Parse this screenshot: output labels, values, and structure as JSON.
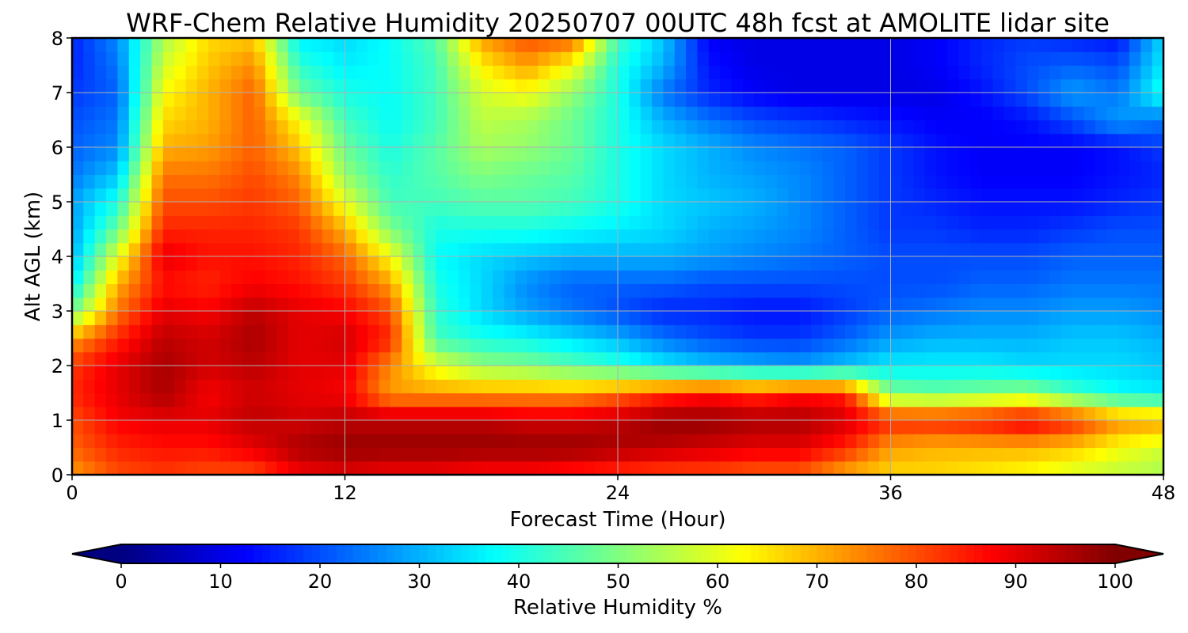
{
  "chart_data": {
    "type": "heatmap",
    "title": "WRF-Chem Relative Humidity 20250707 00UTC 48h fcst at AMOLITE lidar site",
    "xlabel": "Forecast Time (Hour)",
    "ylabel": "Alt AGL (km)",
    "xlim": [
      0,
      48
    ],
    "ylim": [
      0,
      8
    ],
    "xticks": [
      0,
      12,
      24,
      36,
      48
    ],
    "yticks": [
      0,
      1,
      2,
      3,
      4,
      5,
      6,
      7,
      8
    ],
    "grid": true,
    "colormap": "jet",
    "x": [
      0,
      2,
      4,
      6,
      8,
      10,
      12,
      14,
      16,
      18,
      20,
      22,
      24,
      26,
      28,
      30,
      32,
      34,
      36,
      38,
      40,
      42,
      44,
      46,
      48
    ],
    "y": [
      0,
      0.5,
      1,
      1.5,
      2,
      2.5,
      3,
      3.5,
      4,
      4.5,
      5,
      5.5,
      6,
      6.5,
      7,
      7.5,
      8
    ],
    "z": [
      [
        72,
        80,
        82,
        80,
        80,
        88,
        90,
        88,
        88,
        86,
        86,
        84,
        82,
        80,
        80,
        78,
        78,
        70,
        66,
        66,
        64,
        62,
        58,
        56,
        54
      ],
      [
        78,
        84,
        86,
        86,
        90,
        96,
        98,
        98,
        98,
        98,
        98,
        98,
        96,
        94,
        92,
        90,
        90,
        84,
        72,
        70,
        70,
        70,
        68,
        62,
        58
      ],
      [
        80,
        88,
        90,
        90,
        94,
        92,
        94,
        94,
        94,
        94,
        92,
        92,
        94,
        98,
        98,
        96,
        96,
        92,
        84,
        84,
        86,
        90,
        84,
        74,
        72
      ],
      [
        84,
        90,
        96,
        88,
        92,
        90,
        88,
        72,
        72,
        72,
        72,
        72,
        76,
        82,
        86,
        82,
        86,
        84,
        50,
        48,
        50,
        52,
        44,
        38,
        36
      ],
      [
        82,
        90,
        96,
        92,
        94,
        90,
        90,
        74,
        60,
        52,
        50,
        46,
        42,
        36,
        32,
        30,
        28,
        32,
        36,
        36,
        36,
        34,
        34,
        34,
        32
      ],
      [
        72,
        84,
        94,
        92,
        96,
        90,
        92,
        84,
        44,
        40,
        38,
        34,
        30,
        24,
        20,
        18,
        18,
        22,
        28,
        30,
        30,
        30,
        32,
        32,
        30
      ],
      [
        48,
        76,
        90,
        88,
        94,
        90,
        88,
        80,
        42,
        34,
        28,
        24,
        20,
        16,
        16,
        14,
        14,
        18,
        22,
        24,
        26,
        26,
        28,
        28,
        26
      ],
      [
        36,
        70,
        86,
        84,
        88,
        86,
        82,
        72,
        40,
        34,
        26,
        22,
        22,
        22,
        20,
        20,
        20,
        20,
        20,
        20,
        22,
        22,
        24,
        24,
        24
      ],
      [
        30,
        60,
        90,
        86,
        86,
        84,
        78,
        62,
        38,
        34,
        32,
        30,
        30,
        30,
        28,
        26,
        24,
        22,
        20,
        20,
        20,
        20,
        22,
        22,
        22
      ],
      [
        28,
        48,
        84,
        84,
        84,
        82,
        70,
        50,
        40,
        40,
        40,
        38,
        36,
        34,
        30,
        28,
        26,
        22,
        18,
        18,
        16,
        16,
        18,
        20,
        20
      ],
      [
        28,
        40,
        80,
        80,
        82,
        78,
        60,
        44,
        44,
        46,
        46,
        44,
        40,
        34,
        32,
        30,
        26,
        22,
        18,
        16,
        14,
        14,
        14,
        16,
        18
      ],
      [
        24,
        32,
        76,
        76,
        80,
        74,
        52,
        42,
        46,
        50,
        48,
        46,
        40,
        34,
        30,
        28,
        26,
        22,
        18,
        14,
        12,
        12,
        12,
        14,
        16
      ],
      [
        22,
        26,
        70,
        72,
        78,
        68,
        48,
        40,
        46,
        54,
        52,
        48,
        40,
        34,
        30,
        26,
        24,
        22,
        18,
        14,
        12,
        12,
        12,
        14,
        18
      ],
      [
        20,
        24,
        66,
        70,
        78,
        62,
        44,
        38,
        44,
        56,
        54,
        48,
        40,
        30,
        24,
        20,
        18,
        16,
        14,
        12,
        12,
        14,
        20,
        28,
        24
      ],
      [
        18,
        22,
        62,
        70,
        78,
        48,
        40,
        38,
        44,
        58,
        62,
        52,
        40,
        24,
        16,
        12,
        10,
        10,
        10,
        10,
        14,
        20,
        28,
        24,
        40
      ],
      [
        16,
        24,
        58,
        68,
        74,
        42,
        36,
        38,
        44,
        64,
        72,
        62,
        40,
        30,
        14,
        10,
        10,
        10,
        10,
        12,
        16,
        20,
        22,
        20,
        36
      ],
      [
        16,
        26,
        54,
        66,
        68,
        36,
        34,
        38,
        46,
        72,
        80,
        78,
        44,
        32,
        12,
        10,
        10,
        10,
        10,
        12,
        16,
        18,
        16,
        14,
        34
      ]
    ],
    "colorbar": {
      "label": "Relative Humidity %",
      "min": 0,
      "max": 100,
      "ticks": [
        0,
        10,
        20,
        30,
        40,
        50,
        60,
        70,
        80,
        90,
        100
      ],
      "extend": "both"
    }
  }
}
